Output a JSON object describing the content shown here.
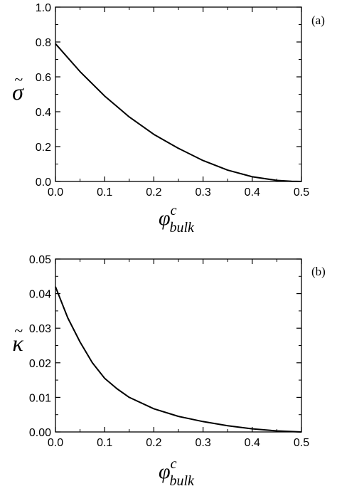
{
  "chart_data": [
    {
      "type": "line",
      "panel_label": "(a)",
      "xlabel": {
        "symbol": "φ",
        "sup": "c",
        "sub": "bulk"
      },
      "ylabel": {
        "symbol": "σ",
        "accent": "~"
      },
      "xlim": [
        0.0,
        0.5
      ],
      "ylim": [
        0.0,
        1.0
      ],
      "xticks": [
        "0.0",
        "0.1",
        "0.2",
        "0.3",
        "0.4",
        "0.5"
      ],
      "yticks": [
        "0.0",
        "0.2",
        "0.4",
        "0.6",
        "0.8",
        "1.0"
      ],
      "grid": false,
      "series": [
        {
          "x": [
            0.0,
            0.025,
            0.05,
            0.075,
            0.1,
            0.125,
            0.15,
            0.175,
            0.2,
            0.25,
            0.3,
            0.35,
            0.4,
            0.45,
            0.48,
            0.5
          ],
          "y": [
            0.79,
            0.71,
            0.63,
            0.56,
            0.49,
            0.43,
            0.37,
            0.32,
            0.27,
            0.19,
            0.12,
            0.065,
            0.027,
            0.006,
            0.001,
            0.0
          ]
        }
      ]
    },
    {
      "type": "line",
      "panel_label": "(b)",
      "xlabel": {
        "symbol": "φ",
        "sup": "c",
        "sub": "bulk"
      },
      "ylabel": {
        "symbol": "κ",
        "accent": "~"
      },
      "xlim": [
        0.0,
        0.5
      ],
      "ylim": [
        0.0,
        0.05
      ],
      "xticks": [
        "0.0",
        "0.1",
        "0.2",
        "0.3",
        "0.4",
        "0.5"
      ],
      "yticks": [
        "0.00",
        "0.01",
        "0.02",
        "0.03",
        "0.04",
        "0.05"
      ],
      "grid": false,
      "series": [
        {
          "x": [
            0.0,
            0.025,
            0.05,
            0.075,
            0.1,
            0.125,
            0.15,
            0.2,
            0.25,
            0.3,
            0.35,
            0.4,
            0.45,
            0.5
          ],
          "y": [
            0.042,
            0.033,
            0.026,
            0.02,
            0.0155,
            0.0125,
            0.01,
            0.0067,
            0.0045,
            0.003,
            0.0018,
            0.0009,
            0.0003,
            0.0
          ]
        }
      ]
    }
  ]
}
